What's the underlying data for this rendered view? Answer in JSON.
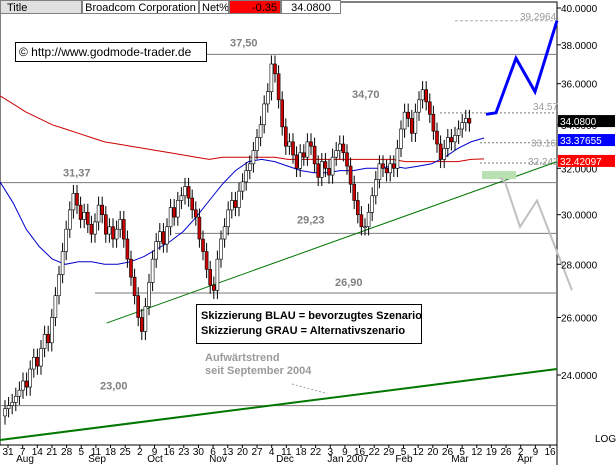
{
  "header": {
    "title_label": "Title",
    "company": "Broadcom Corporation",
    "pct_label": "Net%",
    "change": "-0.35",
    "price": "34.0800"
  },
  "url_text": "© http://www.godmode-trader.de",
  "legend": {
    "line1": "Skizzierung BLAU = bevorzugtes Szenario",
    "line2": "Skizzierung GRAU = Alternativszenario"
  },
  "annotation": {
    "line1": "Aufwärtstrend",
    "line2": "seit September 2004"
  },
  "colors": {
    "candle_bullish": "#ffffff",
    "candle_bearish": "#cc0000",
    "ma_short": "#0000cc",
    "ma_long": "#cc0000",
    "trendline": "#007700",
    "scenario_blue": "#0000ff",
    "scenario_gray": "#c0c0c0",
    "level_line": "#7a7a7a",
    "price_tag_last": "#000000",
    "price_tag_blue": "#0000ff",
    "price_tag_red": "#ff0000"
  },
  "chart_data": {
    "type": "candlestick",
    "title": "Broadcom Corporation",
    "y_scale": "log",
    "y_axis_label": "LOG",
    "ylim": [
      22.6,
      40.2
    ],
    "y_ticks": [
      "24.0000",
      "26.0000",
      "28.0000",
      "30.0000",
      "32.0000",
      "34.0000",
      "36.0000",
      "38.0000",
      "40.0000"
    ],
    "x_tick_labels": [
      "31",
      "7",
      "14",
      "21",
      "28",
      "5",
      "11",
      "18",
      "25",
      "2",
      "9",
      "16",
      "23",
      "30",
      "6",
      "13",
      "20",
      "27",
      "4",
      "11",
      "18",
      "22",
      "3",
      "9",
      "16",
      "22",
      "29",
      "5",
      "12",
      "20",
      "26",
      "5",
      "12",
      "19",
      "26",
      "2",
      "9",
      "16"
    ],
    "month_labels": [
      "Aug",
      "Sep",
      "Oct",
      "Nov",
      "Dec",
      "Jan 2007",
      "Feb",
      "Mar",
      "Apr"
    ],
    "grid": false,
    "horizontal_levels": [
      {
        "value": 39.2964,
        "label": "39.2964"
      },
      {
        "value": 34.57,
        "label": "34.57"
      },
      {
        "value": 33.16,
        "label": "33.16"
      },
      {
        "value": 32.242,
        "label": "32.242"
      }
    ],
    "level_labels": [
      "37,50",
      "34,70",
      "31,37",
      "29,23",
      "26,90",
      "23,00"
    ],
    "price_tags": [
      {
        "value": 34.08,
        "label": "34.0800"
      },
      {
        "value": 33.37655,
        "label": "33.37655"
      },
      {
        "value": 32.42097,
        "label": "32.42097"
      }
    ],
    "candles_close": [
      22.9,
      23.0,
      23.1,
      23.3,
      23.5,
      23.8,
      23.6,
      24.2,
      24.6,
      24.3,
      24.9,
      25.4,
      25.1,
      26.0,
      26.8,
      27.6,
      28.5,
      29.4,
      30.2,
      30.9,
      30.4,
      29.8,
      30.1,
      29.6,
      29.2,
      29.7,
      30.4,
      30.0,
      29.2,
      29.5,
      29.0,
      29.4,
      29.8,
      29.0,
      28.2,
      27.5,
      26.8,
      26.0,
      25.5,
      26.4,
      27.3,
      28.2,
      28.9,
      29.3,
      28.8,
      29.5,
      30.3,
      29.9,
      30.6,
      30.8,
      31.2,
      30.7,
      30.2,
      29.9,
      29.0,
      28.5,
      27.8,
      27.2,
      27.0,
      28.2,
      29.0,
      29.5,
      30.2,
      30.6,
      30.3,
      31.0,
      31.4,
      31.9,
      32.2,
      32.8,
      33.4,
      34.0,
      35.0,
      35.6,
      37.0,
      36.5,
      35.2,
      33.9,
      33.0,
      33.2,
      32.6,
      32.0,
      32.7,
      32.5,
      33.2,
      33.0,
      32.2,
      31.6,
      32.3,
      32.0,
      31.7,
      32.5,
      32.8,
      33.1,
      32.7,
      32.1,
      31.3,
      30.6,
      30.0,
      29.5,
      29.5,
      30.1,
      30.8,
      31.5,
      32.2,
      32.0,
      31.8,
      32.2,
      32.0,
      32.9,
      33.8,
      34.6,
      34.3,
      33.6,
      34.6,
      35.2,
      35.7,
      35.1,
      34.5,
      33.7,
      33.1,
      32.4,
      32.9,
      33.4,
      33.2,
      33.5,
      33.8,
      34.1,
      34.3,
      34.08
    ],
    "ma_short_approx": [
      31.4,
      30.5,
      29.4,
      28.7,
      28.2,
      28.0,
      28.1,
      28.1,
      28.0,
      28.0,
      28.1,
      28.3,
      28.6,
      28.9,
      29.3,
      29.9,
      30.6,
      31.3,
      31.9,
      32.3,
      32.4,
      32.3,
      32.1,
      31.9,
      31.8,
      31.8,
      31.9,
      31.9,
      32.0,
      32.0,
      32.1,
      32.0,
      32.1,
      32.2,
      32.5,
      32.9,
      33.2,
      33.38
    ],
    "ma_long_approx": [
      35.4,
      35.0,
      34.6,
      34.3,
      34.0,
      33.8,
      33.6,
      33.4,
      33.2,
      33.1,
      33.0,
      32.9,
      32.8,
      32.7,
      32.6,
      32.5,
      32.4,
      32.5,
      32.5,
      32.5,
      32.5,
      32.5,
      32.4,
      32.4,
      32.4,
      32.4,
      32.4,
      32.4,
      32.4,
      32.4,
      32.4,
      32.3,
      32.3,
      32.3,
      32.3,
      32.3,
      32.4,
      32.42
    ],
    "scenario_blue": [
      34.5,
      34.57,
      37.3,
      35.6,
      39.3
    ],
    "scenario_gray": [
      31.6,
      31.4,
      29.5,
      30.6,
      27.0
    ],
    "trendlines": [
      {
        "name": "trend-upper",
        "from": [
          6,
          25.8
        ],
        "to": [
          129,
          32.3
        ]
      },
      {
        "name": "trend-lower",
        "from": [
          0,
          22.55
        ],
        "to": [
          146,
          24.2
        ]
      }
    ]
  }
}
